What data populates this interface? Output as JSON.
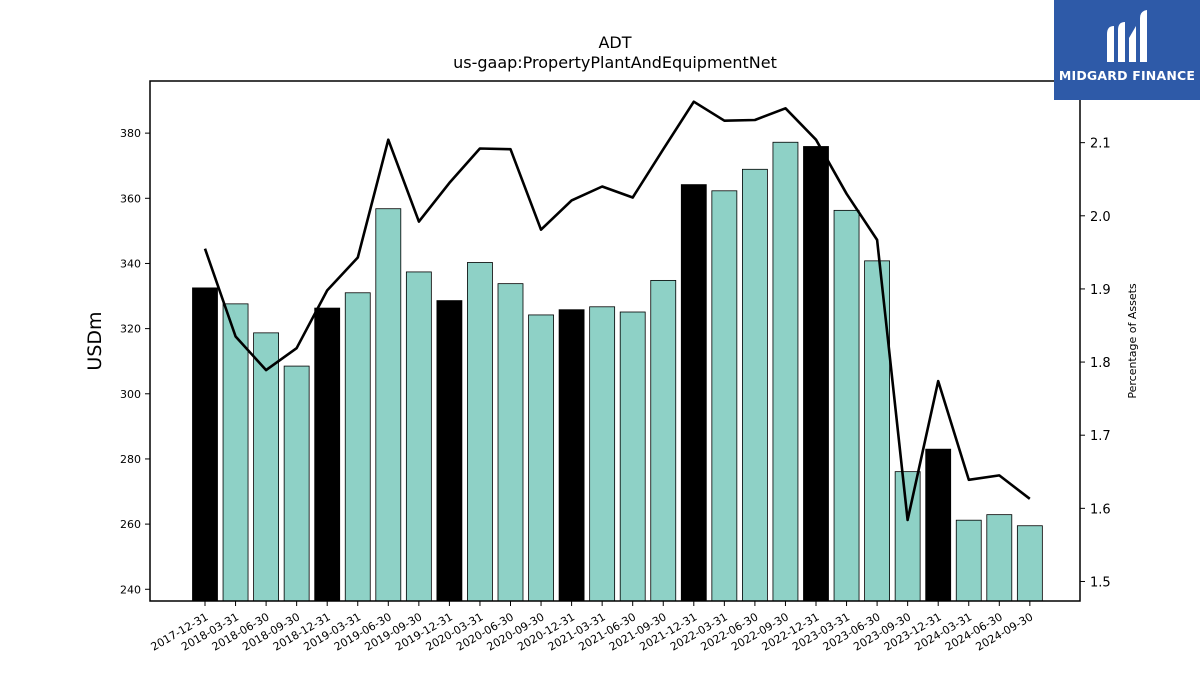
{
  "chart_data": {
    "type": "bar+line",
    "title": "ADT",
    "subtitle": "us-gaap:PropertyPlantAndEquipmentNet",
    "ylabel": "USDm",
    "y2label": "Percentage of Assets",
    "categories": [
      "2017-12-31",
      "2018-03-31",
      "2018-06-30",
      "2018-09-30",
      "2018-12-31",
      "2019-03-31",
      "2019-06-30",
      "2019-09-30",
      "2019-12-31",
      "2020-03-31",
      "2020-06-30",
      "2020-09-30",
      "2020-12-31",
      "2021-03-31",
      "2021-06-30",
      "2021-09-30",
      "2021-12-31",
      "2022-03-31",
      "2022-06-30",
      "2022-09-30",
      "2022-12-31",
      "2023-03-31",
      "2023-06-30",
      "2023-09-30",
      "2023-12-31",
      "2024-03-31",
      "2024-06-30",
      "2024-09-30"
    ],
    "bar_values": [
      332.5,
      327.6,
      318.7,
      308.5,
      326.3,
      331.0,
      356.8,
      337.4,
      328.6,
      340.3,
      333.8,
      324.2,
      325.8,
      326.7,
      325.1,
      334.8,
      364.2,
      362.3,
      368.9,
      377.2,
      375.9,
      356.3,
      340.8,
      276.1,
      283.0,
      261.2,
      262.9,
      259.5
    ],
    "bar_year_end": [
      true,
      false,
      false,
      false,
      true,
      false,
      false,
      false,
      true,
      false,
      false,
      false,
      true,
      false,
      false,
      false,
      true,
      false,
      false,
      false,
      true,
      false,
      false,
      false,
      true,
      false,
      false,
      false
    ],
    "line_values": [
      1.955,
      1.835,
      1.789,
      1.819,
      1.898,
      1.943,
      2.104,
      1.992,
      2.045,
      2.092,
      2.091,
      1.981,
      2.021,
      2.04,
      2.025,
      2.091,
      2.156,
      2.13,
      2.131,
      2.147,
      2.104,
      2.03,
      1.967,
      1.584,
      1.774,
      1.639,
      1.645,
      1.613
    ],
    "yticks": [
      240,
      260,
      280,
      300,
      320,
      340,
      360,
      380
    ],
    "y2ticks": [
      "1.5",
      "1.6",
      "1.7",
      "1.8",
      "1.9",
      "2.0",
      "2.1"
    ],
    "ylim": [
      236.4,
      396.0
    ],
    "y2lim": [
      1.4733,
      2.1843
    ],
    "colors": {
      "bar": "#8ed1c6",
      "bar_year_end": "#000000",
      "line": "#000000",
      "edge": "#000000"
    },
    "grid": false
  },
  "logo": {
    "text": "MIDGARD FINANCE"
  }
}
